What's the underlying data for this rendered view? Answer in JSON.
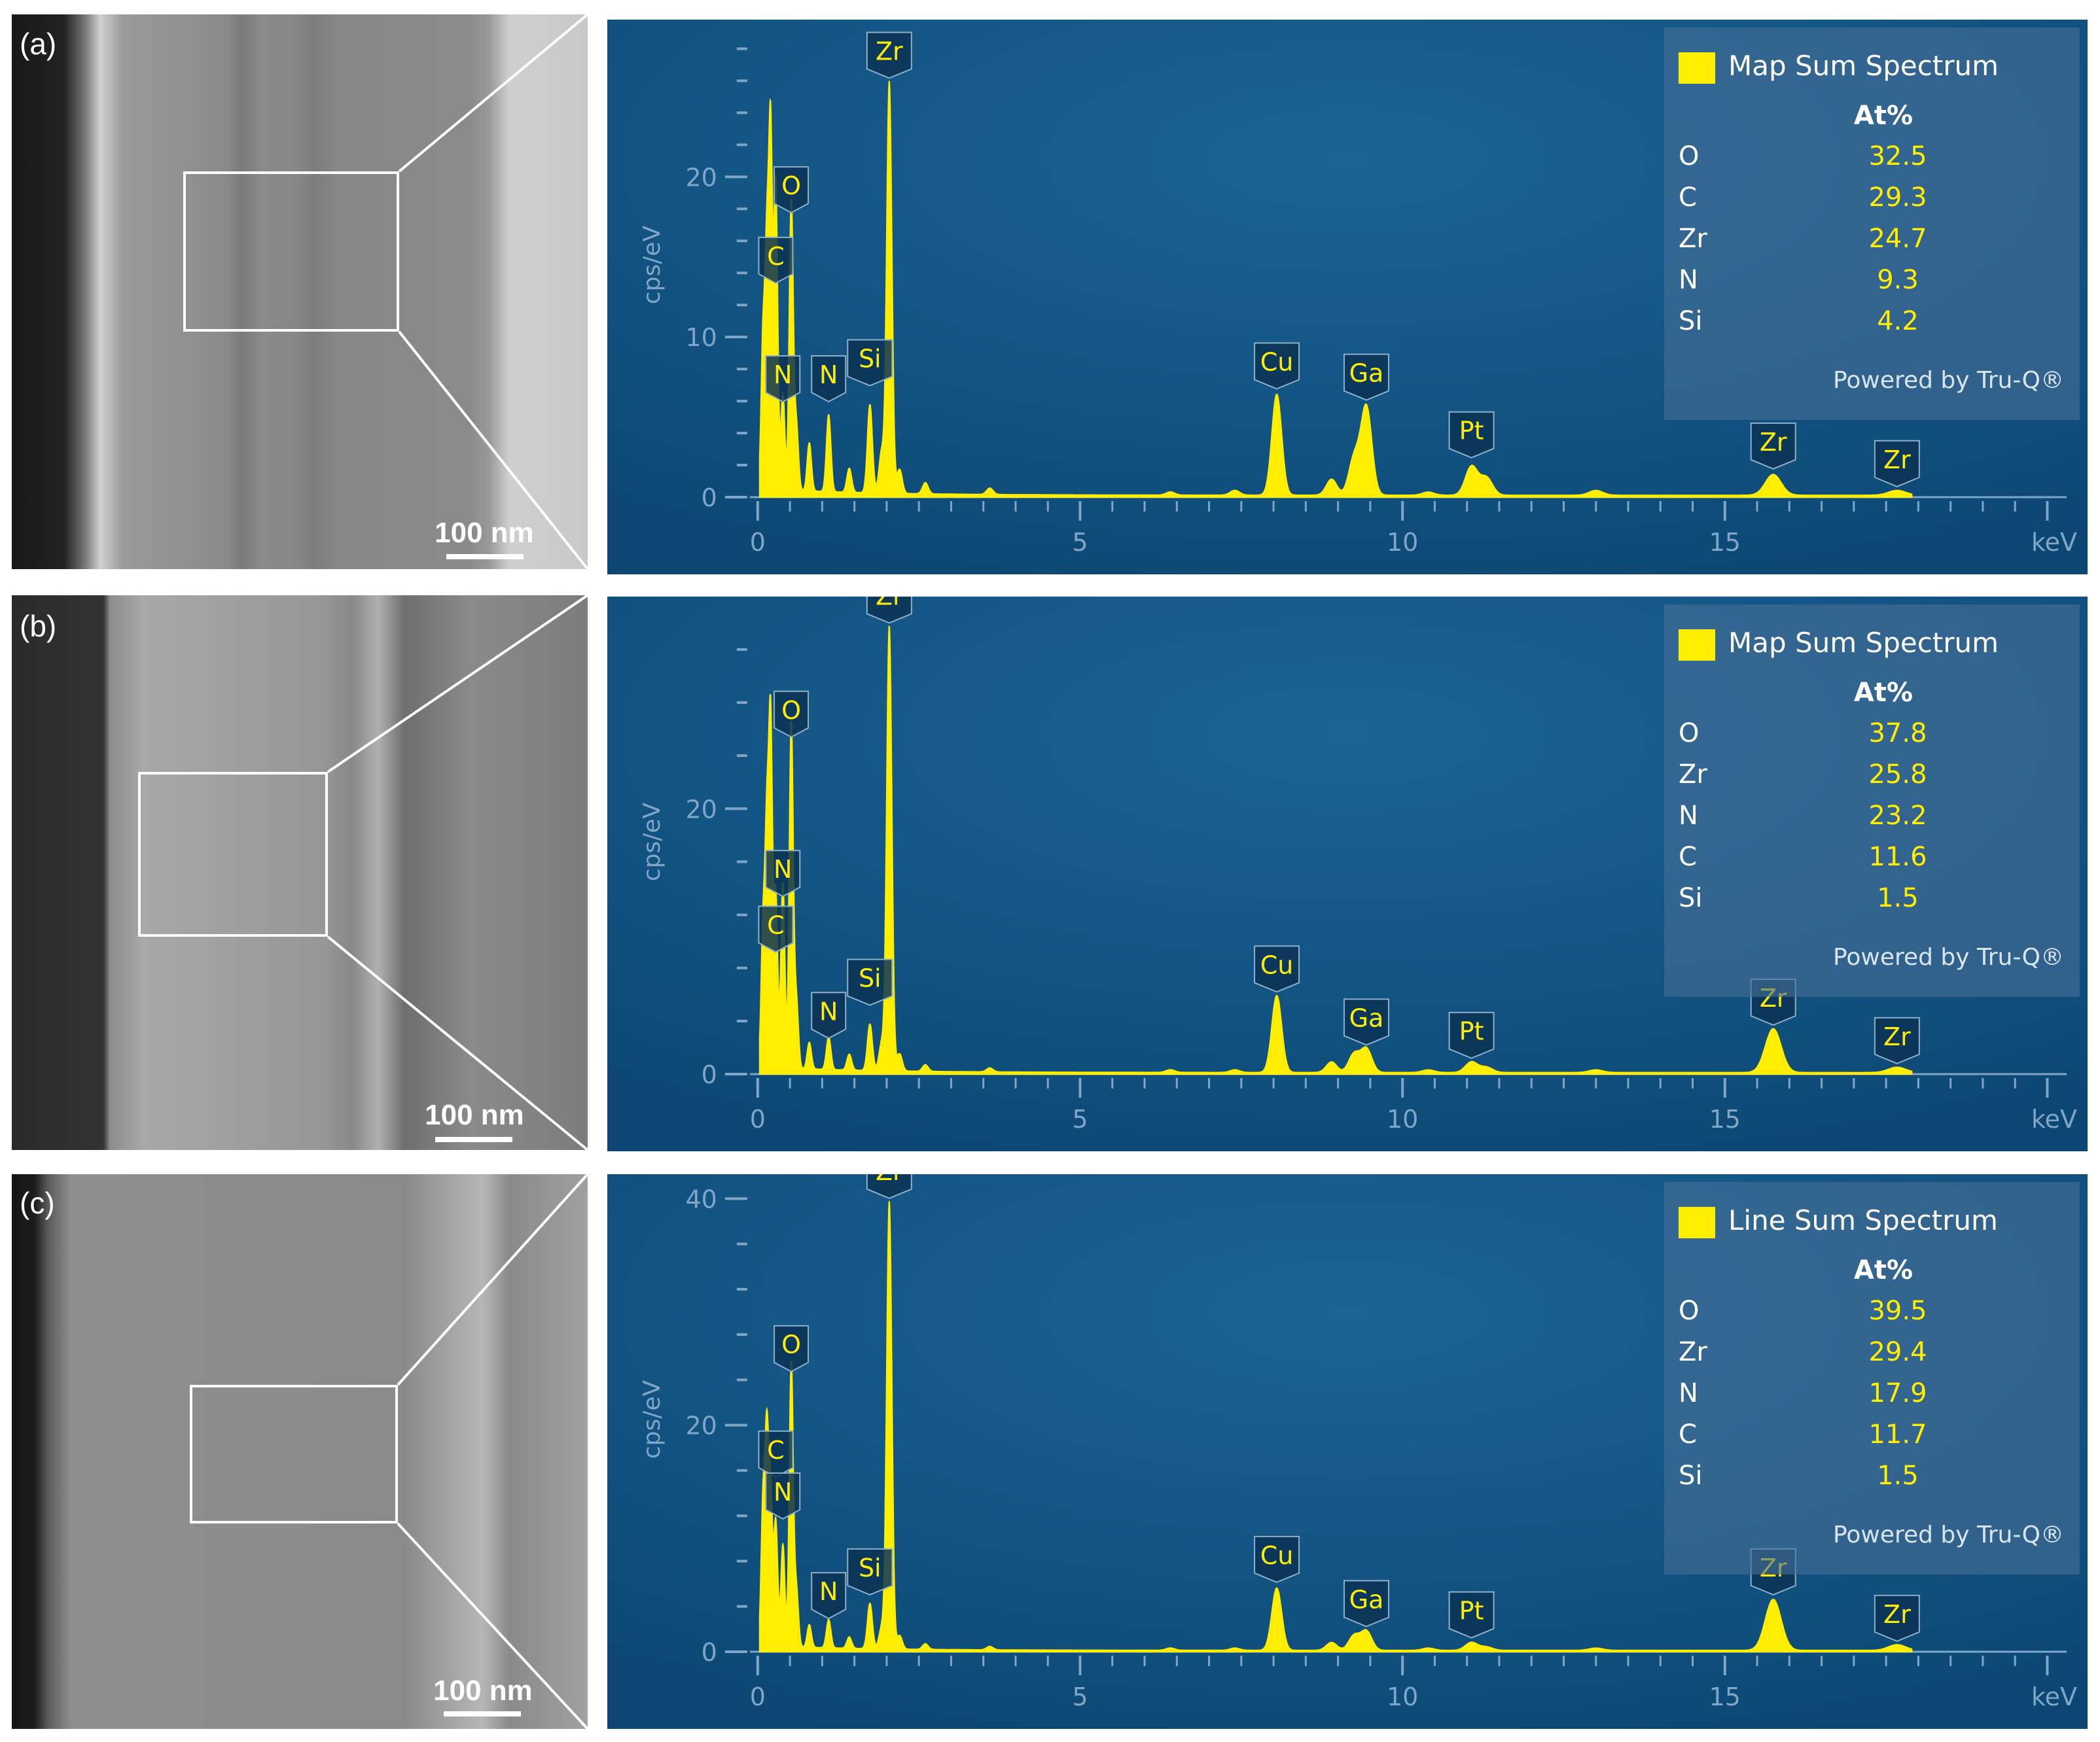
{
  "panels": [
    {
      "label": "(a)",
      "scale_bar": "100 nm",
      "legend": {
        "title": "Map Sum Spectrum",
        "column": "At%",
        "rows": [
          {
            "element": "O",
            "value": "32.5"
          },
          {
            "element": "C",
            "value": "29.3"
          },
          {
            "element": "Zr",
            "value": "24.7"
          },
          {
            "element": "N",
            "value": "9.3"
          },
          {
            "element": "Si",
            "value": "4.2"
          }
        ],
        "footer": "Powered by Tru-Q®"
      }
    },
    {
      "label": "(b)",
      "scale_bar": "100 nm",
      "legend": {
        "title": "Map Sum Spectrum",
        "column": "At%",
        "rows": [
          {
            "element": "O",
            "value": "37.8"
          },
          {
            "element": "Zr",
            "value": "25.8"
          },
          {
            "element": "N",
            "value": "23.2"
          },
          {
            "element": "C",
            "value": "11.6"
          },
          {
            "element": "Si",
            "value": "1.5"
          }
        ],
        "footer": "Powered by Tru-Q®"
      }
    },
    {
      "label": "(c)",
      "scale_bar": "100 nm",
      "legend": {
        "title": "Line Sum Spectrum",
        "column": "At%",
        "rows": [
          {
            "element": "O",
            "value": "39.5"
          },
          {
            "element": "Zr",
            "value": "29.4"
          },
          {
            "element": "N",
            "value": "17.9"
          },
          {
            "element": "C",
            "value": "11.7"
          },
          {
            "element": "Si",
            "value": "1.5"
          }
        ],
        "footer": "Powered by Tru-Q®"
      }
    }
  ],
  "colors": {
    "spectrum": "#ffee00",
    "plot_bg": "#0c4672",
    "plot_bg_light": "#1a6496",
    "axis_text": "#7fa6c6",
    "legend_value": "#ffee00"
  },
  "chart_data": [
    {
      "type": "area",
      "xlabel": "keV",
      "ylabel": "cps/eV",
      "x_ticks": [
        0,
        5,
        10,
        15
      ],
      "y_ticks": [
        0,
        10,
        20
      ],
      "xlim": [
        -0.1,
        20.3
      ],
      "ylim": [
        0,
        29
      ],
      "series": [
        {
          "values": [
            [
              0.08,
              9
            ],
            [
              0.14,
              14
            ],
            [
              0.2,
              22
            ],
            [
              0.28,
              19
            ],
            [
              0.39,
              6
            ],
            [
              0.52,
              18
            ],
            [
              0.6,
              4
            ],
            [
              0.8,
              3
            ],
            [
              1.1,
              4.8
            ],
            [
              1.42,
              1.5
            ],
            [
              1.74,
              5.5
            ],
            [
              1.92,
              2.5
            ],
            [
              2.04,
              25.7
            ],
            [
              2.2,
              1.5
            ],
            [
              2.6,
              0.7
            ],
            [
              3.6,
              0.4
            ],
            [
              6.4,
              0.2
            ],
            [
              7.4,
              0.3
            ],
            [
              8.05,
              6.3
            ],
            [
              8.9,
              1.0
            ],
            [
              9.25,
              2.3
            ],
            [
              9.44,
              5.5
            ],
            [
              10.4,
              0.2
            ],
            [
              11.07,
              1.8
            ],
            [
              11.3,
              1.1
            ],
            [
              13.0,
              0.3
            ],
            [
              15.75,
              1.3
            ],
            [
              17.67,
              0.3
            ]
          ]
        }
      ],
      "peak_labels": [
        {
          "label": "Zr",
          "x": 2.04,
          "y": 26.0
        },
        {
          "label": "O",
          "x": 0.52,
          "y": 17.6
        },
        {
          "label": "C",
          "x": 0.28,
          "y": 13.2
        },
        {
          "label": "N",
          "x": 0.39,
          "y": 5.8
        },
        {
          "label": "N",
          "x": 1.1,
          "y": 5.8
        },
        {
          "label": "Si",
          "x": 1.74,
          "y": 6.8
        },
        {
          "label": "Cu",
          "x": 8.05,
          "y": 6.6
        },
        {
          "label": "Ga",
          "x": 9.44,
          "y": 5.9
        },
        {
          "label": "Pt",
          "x": 11.07,
          "y": 2.3
        },
        {
          "label": "Zr",
          "x": 15.75,
          "y": 1.6
        },
        {
          "label": "Zr",
          "x": 17.67,
          "y": 0.5
        }
      ]
    },
    {
      "type": "area",
      "xlabel": "keV",
      "ylabel": "cps/eV",
      "x_ticks": [
        0,
        5,
        10,
        15
      ],
      "y_ticks": [
        0,
        20
      ],
      "xlim": [
        -0.1,
        20.3
      ],
      "ylim": [
        0,
        35
      ],
      "series": [
        {
          "values": [
            [
              0.08,
              10
            ],
            [
              0.14,
              17
            ],
            [
              0.2,
              25.5
            ],
            [
              0.28,
              13
            ],
            [
              0.39,
              14
            ],
            [
              0.52,
              26
            ],
            [
              0.6,
              5
            ],
            [
              0.8,
              2
            ],
            [
              1.1,
              2.5
            ],
            [
              1.42,
              1.2
            ],
            [
              1.74,
              3.5
            ],
            [
              1.92,
              2
            ],
            [
              2.04,
              33.5
            ],
            [
              2.2,
              1.3
            ],
            [
              2.6,
              0.5
            ],
            [
              3.6,
              0.3
            ],
            [
              6.4,
              0.2
            ],
            [
              7.4,
              0.2
            ],
            [
              8.05,
              5.8
            ],
            [
              8.9,
              0.8
            ],
            [
              9.25,
              1.4
            ],
            [
              9.44,
              1.8
            ],
            [
              10.4,
              0.2
            ],
            [
              11.07,
              0.8
            ],
            [
              11.3,
              0.4
            ],
            [
              13.0,
              0.2
            ],
            [
              15.75,
              3.3
            ],
            [
              17.67,
              0.4
            ]
          ]
        }
      ],
      "peak_labels": [
        {
          "label": "Zr",
          "x": 2.04,
          "y": 33.8
        },
        {
          "label": "O",
          "x": 0.52,
          "y": 25.2
        },
        {
          "label": "N",
          "x": 0.39,
          "y": 13.2
        },
        {
          "label": "C",
          "x": 0.28,
          "y": 9.0
        },
        {
          "label": "N",
          "x": 1.1,
          "y": 2.5
        },
        {
          "label": "Si",
          "x": 1.74,
          "y": 5.0
        },
        {
          "label": "Cu",
          "x": 8.05,
          "y": 6.0
        },
        {
          "label": "Ga",
          "x": 9.44,
          "y": 2.0
        },
        {
          "label": "Pt",
          "x": 11.07,
          "y": 1.0
        },
        {
          "label": "Zr",
          "x": 15.75,
          "y": 3.5
        },
        {
          "label": "Zr",
          "x": 17.67,
          "y": 0.6
        }
      ]
    },
    {
      "type": "area",
      "xlabel": "keV",
      "ylabel": "cps/eV",
      "x_ticks": [
        0,
        5,
        10,
        15
      ],
      "y_ticks": [
        0,
        20,
        40
      ],
      "xlim": [
        -0.1,
        20.3
      ],
      "ylim": [
        0,
        41
      ],
      "series": [
        {
          "values": [
            [
              0.08,
              12
            ],
            [
              0.14,
              18
            ],
            [
              0.2,
              13
            ],
            [
              0.28,
              11
            ],
            [
              0.39,
              9
            ],
            [
              0.52,
              25
            ],
            [
              0.6,
              5
            ],
            [
              0.8,
              2
            ],
            [
              1.1,
              2.5
            ],
            [
              1.42,
              1
            ],
            [
              1.74,
              4
            ],
            [
              1.92,
              1.8
            ],
            [
              2.04,
              39.5
            ],
            [
              2.2,
              1.2
            ],
            [
              2.6,
              0.5
            ],
            [
              3.6,
              0.3
            ],
            [
              6.4,
              0.2
            ],
            [
              7.4,
              0.2
            ],
            [
              8.05,
              5.5
            ],
            [
              8.9,
              0.7
            ],
            [
              9.25,
              1.3
            ],
            [
              9.44,
              1.7
            ],
            [
              10.4,
              0.2
            ],
            [
              11.07,
              0.7
            ],
            [
              11.3,
              0.3
            ],
            [
              13.0,
              0.2
            ],
            [
              15.75,
              4.5
            ],
            [
              17.67,
              0.5
            ]
          ]
        }
      ],
      "peak_labels": [
        {
          "label": "Zr",
          "x": 2.04,
          "y": 39.8
        },
        {
          "label": "O",
          "x": 0.52,
          "y": 24.5
        },
        {
          "label": "C",
          "x": 0.28,
          "y": 15.2
        },
        {
          "label": "N",
          "x": 0.39,
          "y": 11.5
        },
        {
          "label": "N",
          "x": 1.1,
          "y": 2.7
        },
        {
          "label": "Si",
          "x": 1.74,
          "y": 4.8
        },
        {
          "label": "Cu",
          "x": 8.05,
          "y": 5.9
        },
        {
          "label": "Ga",
          "x": 9.44,
          "y": 2.0
        },
        {
          "label": "Pt",
          "x": 11.07,
          "y": 1.0
        },
        {
          "label": "Zr",
          "x": 15.75,
          "y": 4.8
        },
        {
          "label": "Zr",
          "x": 17.67,
          "y": 0.7
        }
      ]
    }
  ]
}
